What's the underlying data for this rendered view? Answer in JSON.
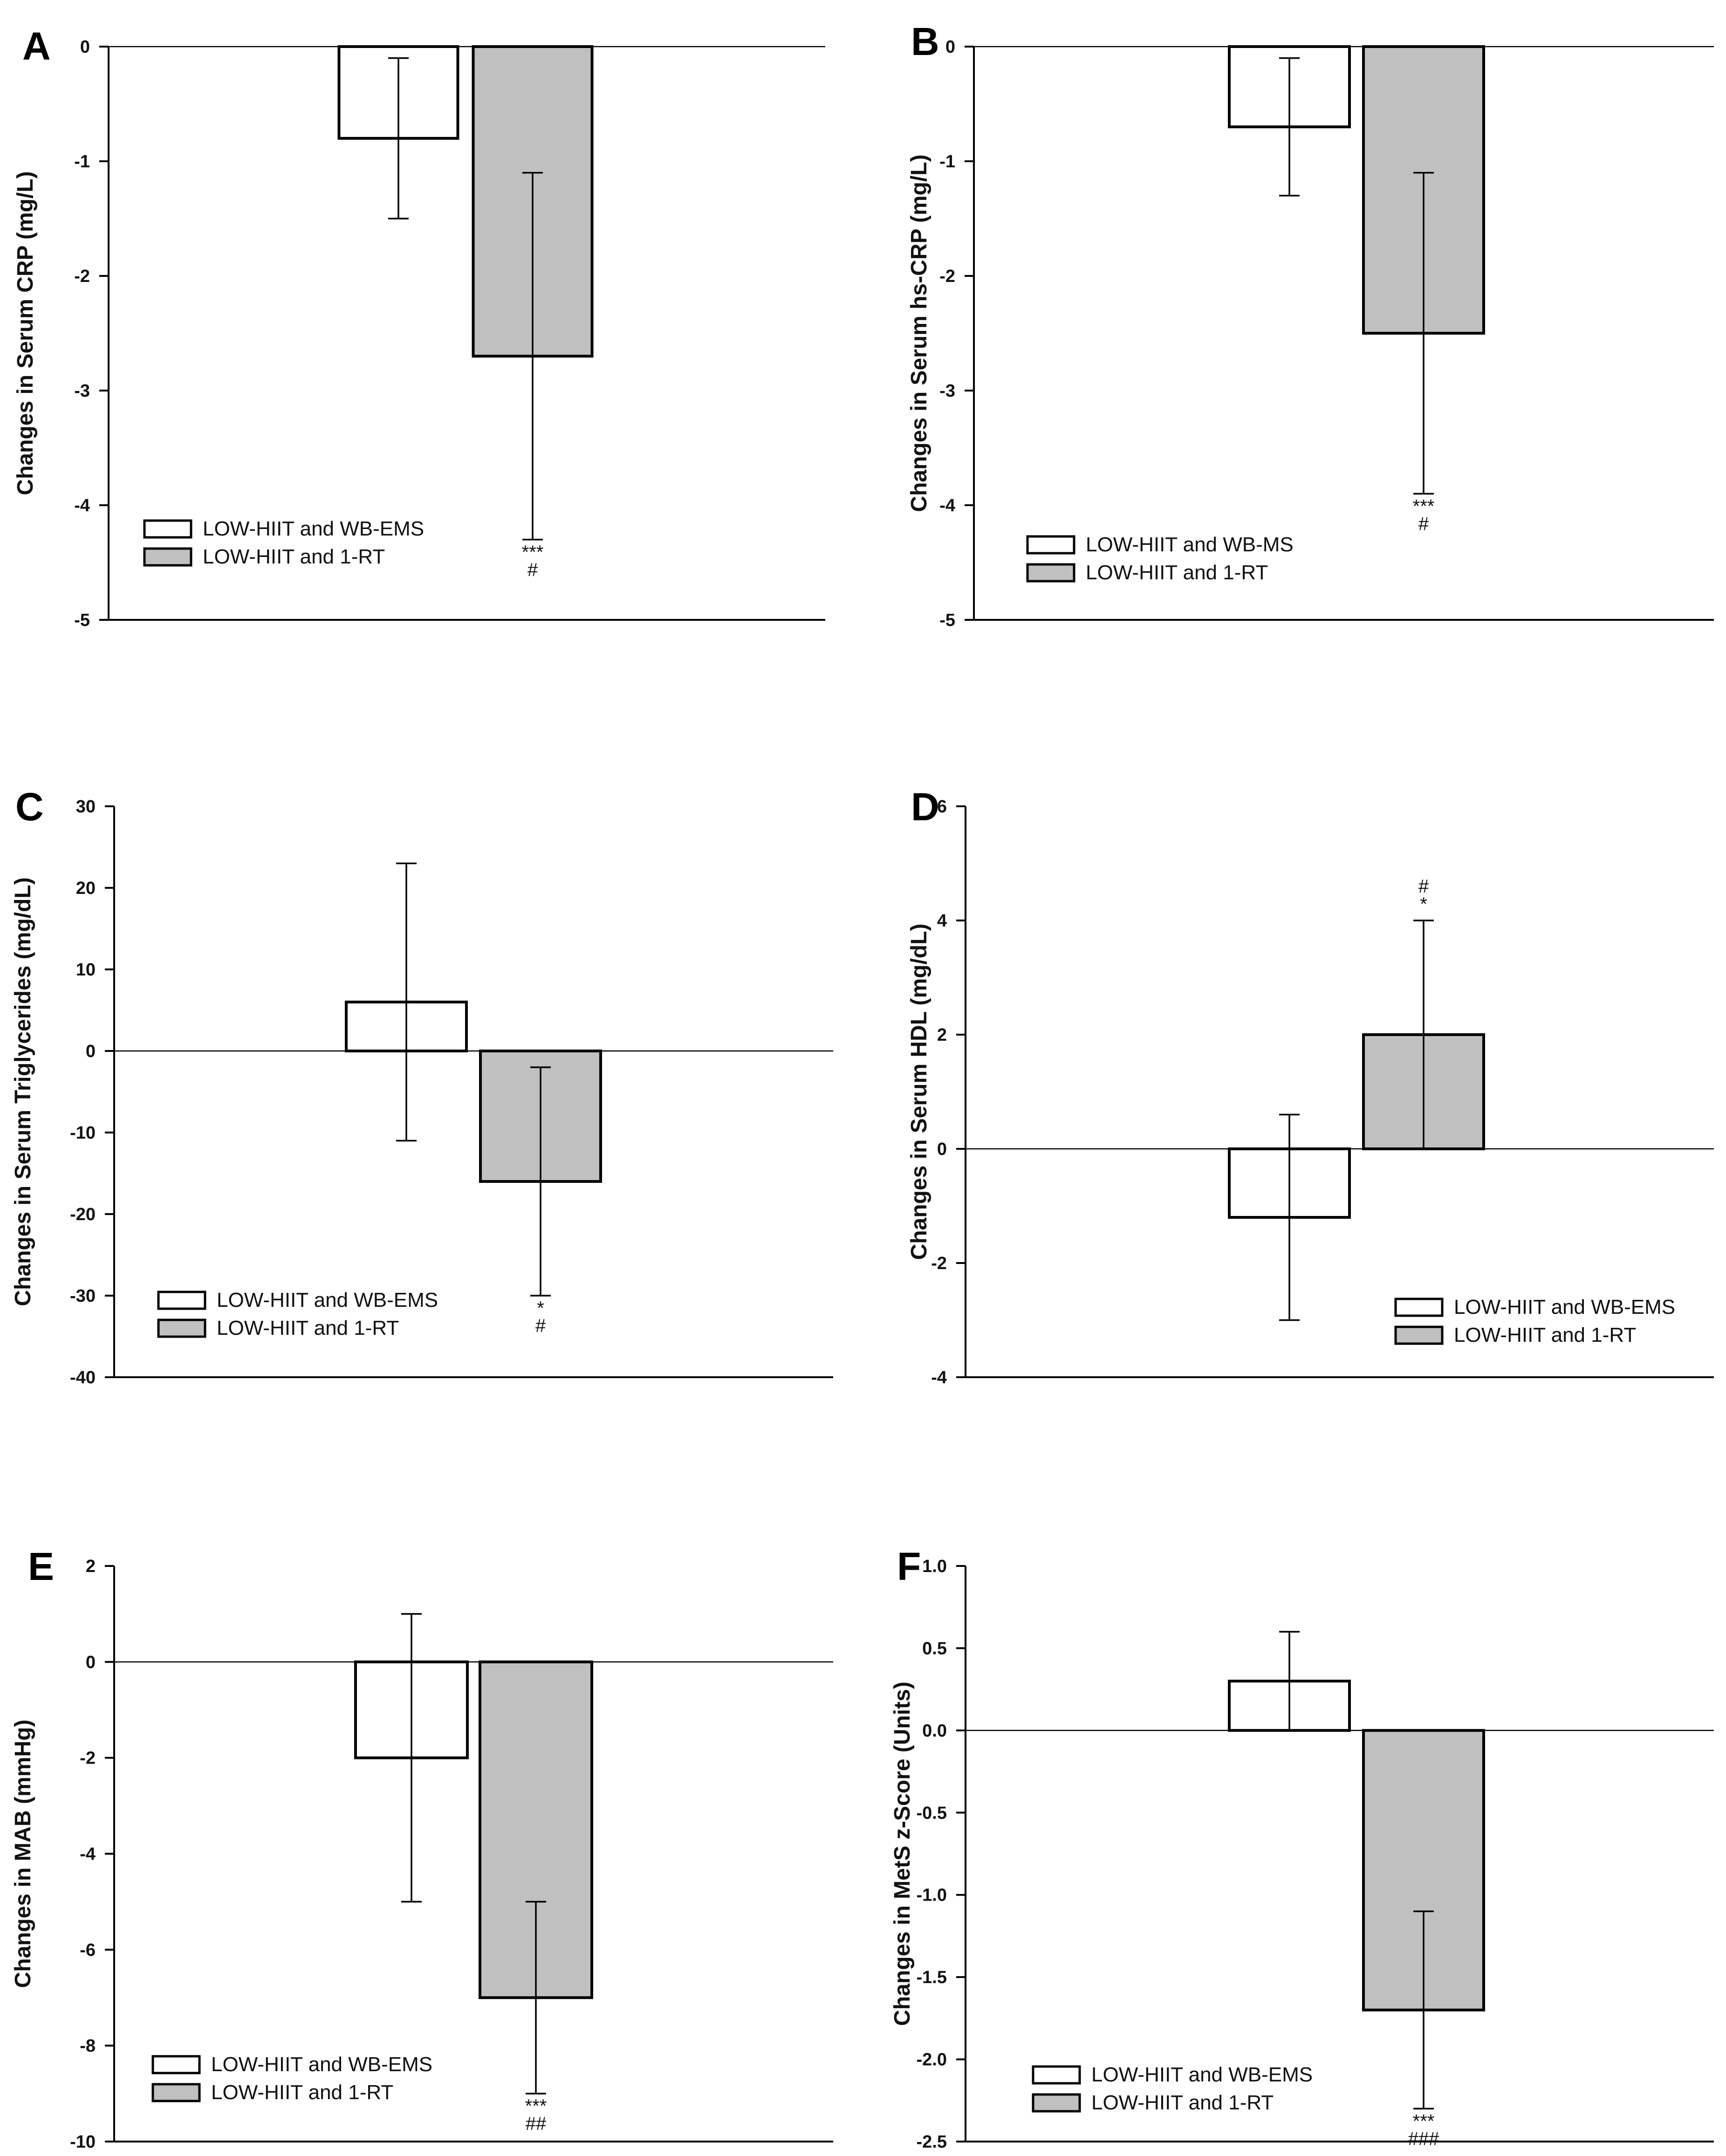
{
  "figure": {
    "colors": {
      "control": "#ffffff",
      "treatment": "#c0c0c0",
      "stroke": "#000000"
    },
    "legend_labels": {
      "control": "LOW-HIIT and WB-EMS",
      "control_alt": "LOW-HIIT and WB-MS",
      "treatment": "LOW-HIIT and 1-RT"
    }
  },
  "chart_data": [
    {
      "panel": "A",
      "type": "bar",
      "title": "",
      "ylabel": "Changes in Serum CRP (mg/L)",
      "xlabel": "",
      "ylim": [
        -5,
        0
      ],
      "yticks": [
        0,
        -1,
        -2,
        -3,
        -4,
        -5
      ],
      "tick_labels": [
        "0",
        "-1",
        "-2",
        "-3",
        "-4",
        "-5"
      ],
      "legend_position": "lower-left",
      "series": [
        {
          "name": "LOW-HIIT and WB-EMS",
          "value": -0.8,
          "error_low": -1.5,
          "error_high": -0.1
        },
        {
          "name": "LOW-HIIT and 1-RT",
          "value": -2.7,
          "error_low": -4.3,
          "error_high": -1.1,
          "significance": [
            "***",
            "#"
          ]
        }
      ]
    },
    {
      "panel": "B",
      "type": "bar",
      "title": "",
      "ylabel": "Changes in Serum hs-CRP (mg/L)",
      "xlabel": "",
      "ylim": [
        -5,
        0
      ],
      "yticks": [
        0,
        -1,
        -2,
        -3,
        -4,
        -5
      ],
      "tick_labels": [
        "0",
        "-1",
        "-2",
        "-3",
        "-4",
        "-5"
      ],
      "legend_position": "lower-left",
      "series": [
        {
          "name": "LOW-HIIT and WB-MS",
          "value": -0.7,
          "error_low": -1.3,
          "error_high": -0.1
        },
        {
          "name": "LOW-HIIT and 1-RT",
          "value": -2.5,
          "error_low": -3.9,
          "error_high": -1.1,
          "significance": [
            "***",
            "#"
          ]
        }
      ]
    },
    {
      "panel": "C",
      "type": "bar",
      "title": "",
      "ylabel": "Changes in Serum Triglycerides (mg/dL)",
      "xlabel": "",
      "ylim": [
        -40,
        30
      ],
      "yticks": [
        30,
        20,
        10,
        0,
        -10,
        -20,
        -30,
        -40
      ],
      "tick_labels": [
        "30",
        "20",
        "10",
        "0",
        "-10",
        "-20",
        "-30",
        "-40"
      ],
      "legend_position": "lower-left",
      "series": [
        {
          "name": "LOW-HIIT and WB-EMS",
          "value": 6,
          "error_low": -11,
          "error_high": 23
        },
        {
          "name": "LOW-HIIT and 1-RT",
          "value": -16,
          "error_low": -30,
          "error_high": -2,
          "significance": [
            "*",
            "#"
          ]
        }
      ]
    },
    {
      "panel": "D",
      "type": "bar",
      "title": "",
      "ylabel": "Changes in Serum HDL (mg/dL)",
      "xlabel": "",
      "ylim": [
        -4,
        6
      ],
      "yticks": [
        6,
        4,
        2,
        0,
        -2,
        -4
      ],
      "tick_labels": [
        "6",
        "4",
        "2",
        "0",
        "-2",
        "-4"
      ],
      "legend_position": "lower-right",
      "series": [
        {
          "name": "LOW-HIIT and WB-EMS",
          "value": -1.2,
          "error_low": -3,
          "error_high": 0.6
        },
        {
          "name": "LOW-HIIT and 1-RT",
          "value": 2,
          "error_low": 0,
          "error_high": 4,
          "significance": [
            "#",
            "*"
          ]
        }
      ]
    },
    {
      "panel": "E",
      "type": "bar",
      "title": "",
      "ylabel": "Changes in MAB (mmHg)",
      "xlabel": "",
      "ylim": [
        -10,
        2
      ],
      "yticks": [
        2,
        0,
        -2,
        -4,
        -6,
        -8,
        -10
      ],
      "tick_labels": [
        "2",
        "0",
        "-2",
        "-4",
        "-6",
        "-8",
        "-10"
      ],
      "legend_position": "lower-left",
      "series": [
        {
          "name": "LOW-HIIT and WB-EMS",
          "value": -2,
          "error_low": -5,
          "error_high": 1
        },
        {
          "name": "LOW-HIIT and 1-RT",
          "value": -7,
          "error_low": -9,
          "error_high": -5,
          "significance": [
            "***",
            "##"
          ]
        }
      ]
    },
    {
      "panel": "F",
      "type": "bar",
      "title": "",
      "ylabel": "Changes in MetS z-Score (Units)",
      "xlabel": "",
      "ylim": [
        -2.5,
        1.0
      ],
      "yticks": [
        1.0,
        0.5,
        0.0,
        -0.5,
        -1.0,
        -1.5,
        -2.0,
        -2.5
      ],
      "tick_labels": [
        "1.0",
        "0.5",
        "0.0",
        "-0.5",
        "-1.0",
        "-1.5",
        "-2.0",
        "-2.5"
      ],
      "legend_position": "lower-left",
      "series": [
        {
          "name": "LOW-HIIT and WB-EMS",
          "value": 0.3,
          "error_low": 0.0,
          "error_high": 0.6
        },
        {
          "name": "LOW-HIIT and 1-RT",
          "value": -1.7,
          "error_low": -2.3,
          "error_high": -1.1,
          "significance": [
            "***",
            "###"
          ]
        }
      ]
    }
  ]
}
